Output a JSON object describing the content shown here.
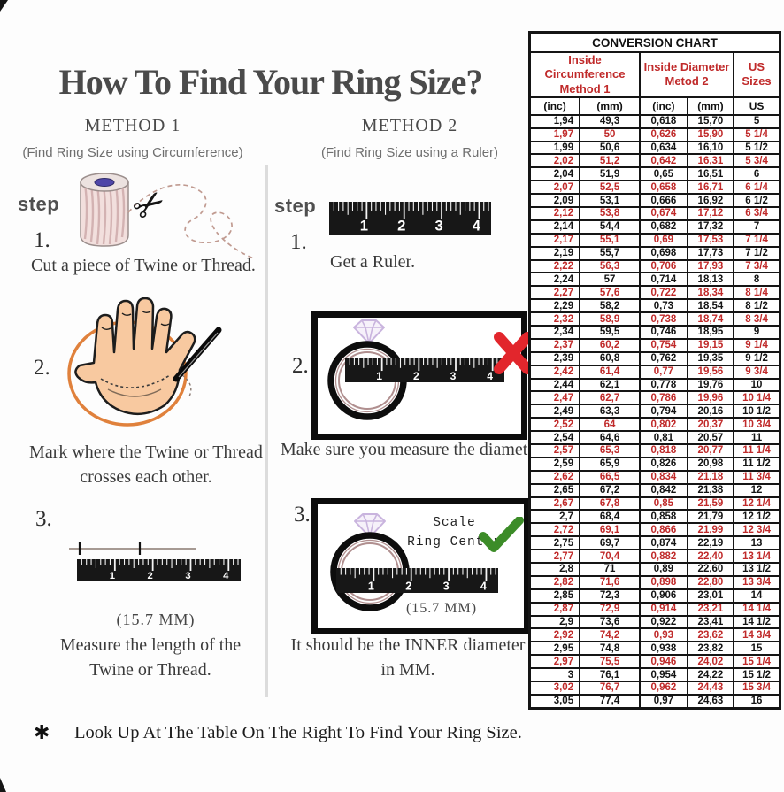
{
  "title": "How To Find Your Ring Size?",
  "methods": [
    {
      "heading": "METHOD 1",
      "subtitle": "(Find Ring Size using Circumference)",
      "step_label": "step",
      "steps": [
        {
          "num": "1.",
          "caption": "Cut a piece of Twine or Thread."
        },
        {
          "num": "2.",
          "caption_line1": "Mark where the Twine or Thread",
          "caption_line2": "crosses each other."
        },
        {
          "num": "3.",
          "note": "(15.7 MM)",
          "caption_line1": "Measure the length of the",
          "caption_line2": "Twine or Thread."
        }
      ]
    },
    {
      "heading": "METHOD 2",
      "subtitle": "(Find Ring Size using a Ruler)",
      "step_label": "step",
      "steps": [
        {
          "num": "1.",
          "caption": "Get a Ruler."
        },
        {
          "num": "2.",
          "caption": "Make sure you measure the diameter."
        },
        {
          "num": "3.",
          "note": "(15.7 MM)",
          "scale_line1": "Scale",
          "scale_line2": "Ring Center",
          "caption_line1": "It should be the INNER diameter",
          "caption_line2": "in MM."
        }
      ]
    }
  ],
  "ruler": {
    "numbers": [
      "1",
      "2",
      "3",
      "4"
    ]
  },
  "footer": {
    "asterisk": "✱",
    "text": "Look Up At The Table On The Right To Find Your Ring Size."
  },
  "colors": {
    "table_red": "#c02a2a",
    "ink": "#151515",
    "title_gray": "#4a4a4a",
    "subtitle_gray": "#6f6f6f",
    "orange_circle": "#e0813c",
    "hand_skin": "#f8c9a0",
    "ring_band": "#b08f8f",
    "diamond_lavender": "#c9b4de",
    "x_red": "#e2262c",
    "check_green": "#3c8c28"
  },
  "conversion_chart": {
    "title": "CONVERSION CHART",
    "group_headers": [
      {
        "line1": "Inside Circumference",
        "line2": "Method 1"
      },
      {
        "line1": "Inside Diameter",
        "line2": "Metod 2"
      },
      {
        "line1": "US Sizes",
        "line2": ""
      }
    ],
    "sub_headers": [
      "(inc)",
      "(mm)",
      "(inc)",
      "(mm)",
      "US"
    ],
    "rows": [
      [
        "1,94",
        "49,3",
        "0,618",
        "15,70",
        "5"
      ],
      [
        "1,97",
        "50",
        "0,626",
        "15,90",
        "5 1/4"
      ],
      [
        "1,99",
        "50,6",
        "0,634",
        "16,10",
        "5 1/2"
      ],
      [
        "2,02",
        "51,2",
        "0,642",
        "16,31",
        "5 3/4"
      ],
      [
        "2,04",
        "51,9",
        "0,65",
        "16,51",
        "6"
      ],
      [
        "2,07",
        "52,5",
        "0,658",
        "16,71",
        "6 1/4"
      ],
      [
        "2,09",
        "53,1",
        "0,666",
        "16,92",
        "6 1/2"
      ],
      [
        "2,12",
        "53,8",
        "0,674",
        "17,12",
        "6 3/4"
      ],
      [
        "2,14",
        "54,4",
        "0,682",
        "17,32",
        "7"
      ],
      [
        "2,17",
        "55,1",
        "0,69",
        "17,53",
        "7 1/4"
      ],
      [
        "2,19",
        "55,7",
        "0,698",
        "17,73",
        "7 1/2"
      ],
      [
        "2,22",
        "56,3",
        "0,706",
        "17,93",
        "7 3/4"
      ],
      [
        "2,24",
        "57",
        "0,714",
        "18,13",
        "8"
      ],
      [
        "2,27",
        "57,6",
        "0,722",
        "18,34",
        "8 1/4"
      ],
      [
        "2,29",
        "58,2",
        "0,73",
        "18,54",
        "8 1/2"
      ],
      [
        "2,32",
        "58,9",
        "0,738",
        "18,74",
        "8 3/4"
      ],
      [
        "2,34",
        "59,5",
        "0,746",
        "18,95",
        "9"
      ],
      [
        "2,37",
        "60,2",
        "0,754",
        "19,15",
        "9 1/4"
      ],
      [
        "2,39",
        "60,8",
        "0,762",
        "19,35",
        "9 1/2"
      ],
      [
        "2,42",
        "61,4",
        "0,77",
        "19,56",
        "9 3/4"
      ],
      [
        "2,44",
        "62,1",
        "0,778",
        "19,76",
        "10"
      ],
      [
        "2,47",
        "62,7",
        "0,786",
        "19,96",
        "10 1/4"
      ],
      [
        "2,49",
        "63,3",
        "0,794",
        "20,16",
        "10 1/2"
      ],
      [
        "2,52",
        "64",
        "0,802",
        "20,37",
        "10 3/4"
      ],
      [
        "2,54",
        "64,6",
        "0,81",
        "20,57",
        "11"
      ],
      [
        "2,57",
        "65,3",
        "0,818",
        "20,77",
        "11 1/4"
      ],
      [
        "2,59",
        "65,9",
        "0,826",
        "20,98",
        "11 1/2"
      ],
      [
        "2,62",
        "66,5",
        "0,834",
        "21,18",
        "11 3/4"
      ],
      [
        "2,65",
        "67,2",
        "0,842",
        "21,38",
        "12"
      ],
      [
        "2,67",
        "67,8",
        "0,85",
        "21,59",
        "12 1/4"
      ],
      [
        "2,7",
        "68,4",
        "0,858",
        "21,79",
        "12 1/2"
      ],
      [
        "2,72",
        "69,1",
        "0,866",
        "21,99",
        "12 3/4"
      ],
      [
        "2,75",
        "69,7",
        "0,874",
        "22,19",
        "13"
      ],
      [
        "2,77",
        "70,4",
        "0,882",
        "22,40",
        "13 1/4"
      ],
      [
        "2,8",
        "71",
        "0,89",
        "22,60",
        "13 1/2"
      ],
      [
        "2,82",
        "71,6",
        "0,898",
        "22,80",
        "13 3/4"
      ],
      [
        "2,85",
        "72,3",
        "0,906",
        "23,01",
        "14"
      ],
      [
        "2,87",
        "72,9",
        "0,914",
        "23,21",
        "14 1/4"
      ],
      [
        "2,9",
        "73,6",
        "0,922",
        "23,41",
        "14 1/2"
      ],
      [
        "2,92",
        "74,2",
        "0,93",
        "23,62",
        "14 3/4"
      ],
      [
        "2,95",
        "74,8",
        "0,938",
        "23,82",
        "15"
      ],
      [
        "2,97",
        "75,5",
        "0,946",
        "24,02",
        "15 1/4"
      ],
      [
        "3",
        "76,1",
        "0,954",
        "24,22",
        "15 1/2"
      ],
      [
        "3,02",
        "76,7",
        "0,962",
        "24,43",
        "15 3/4"
      ],
      [
        "3,05",
        "77,4",
        "0,97",
        "24,63",
        "16"
      ]
    ]
  }
}
